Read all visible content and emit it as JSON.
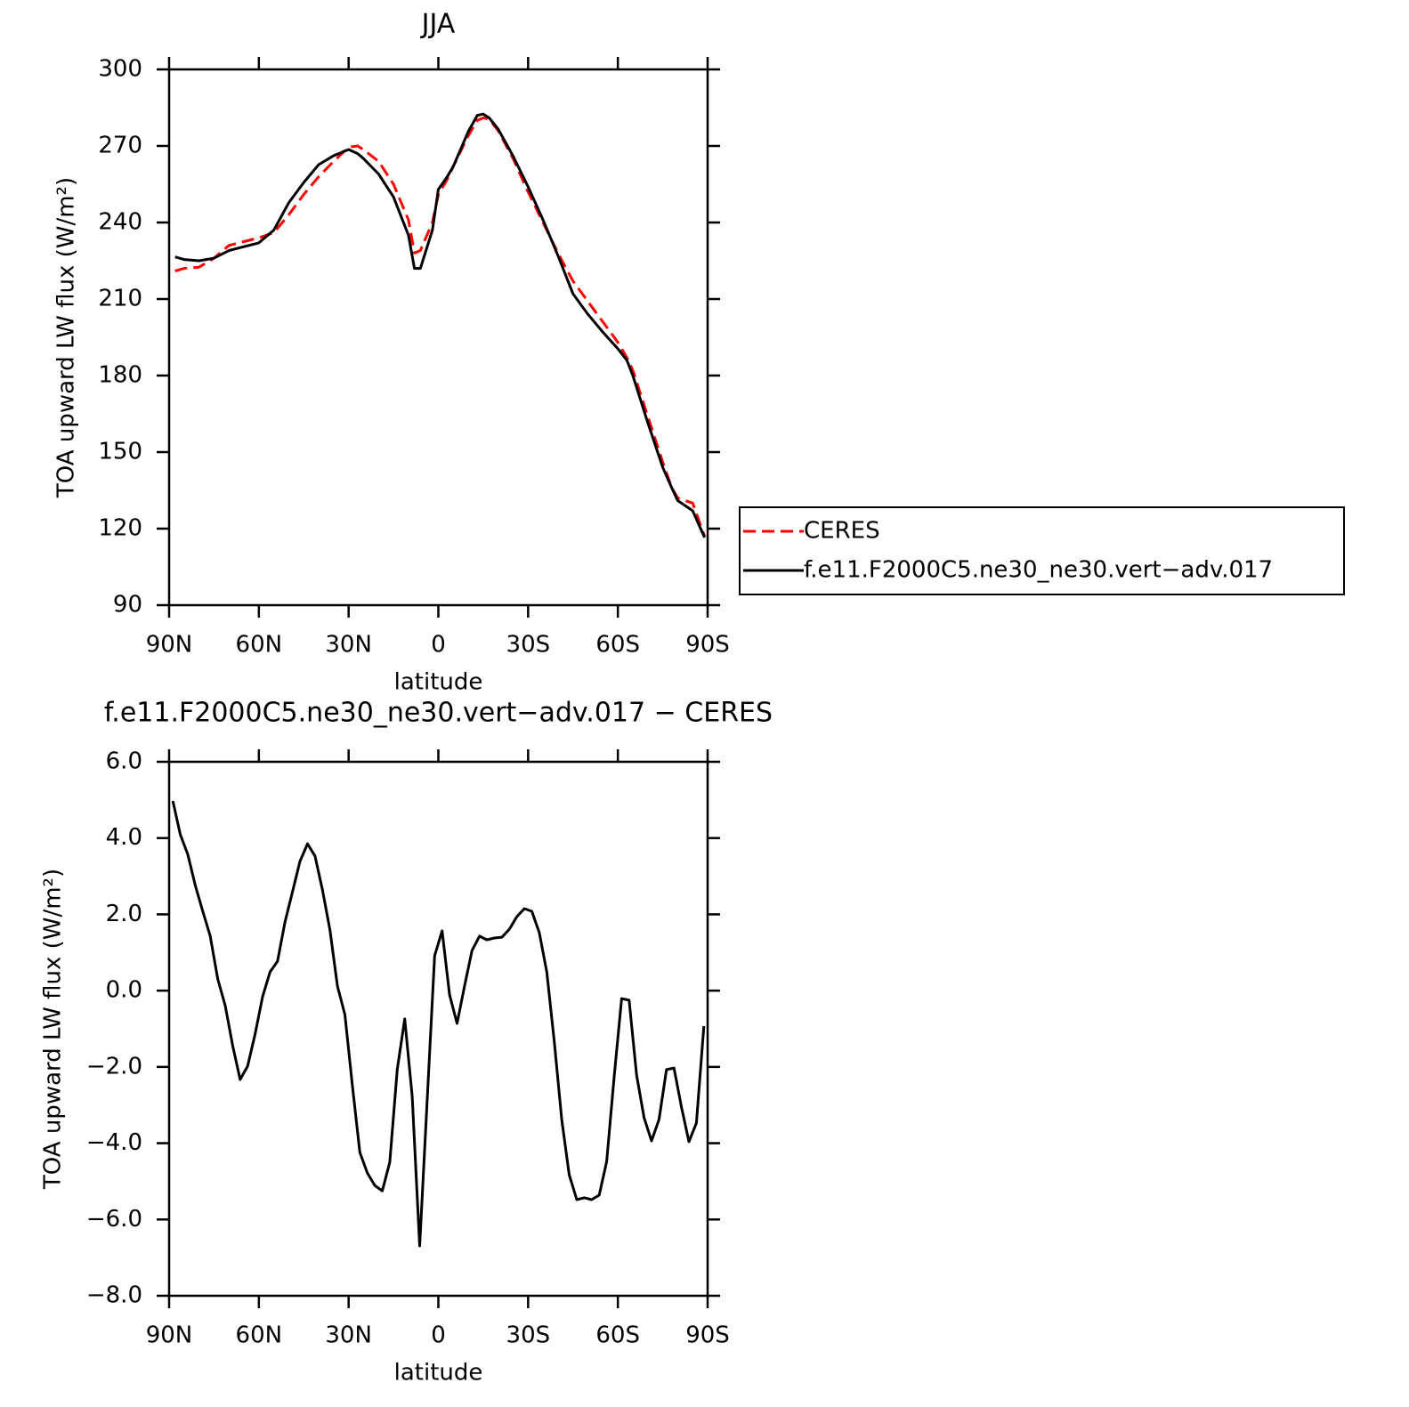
{
  "chart_data": [
    {
      "type": "line",
      "title": "JJA",
      "x_label": "latitude",
      "y_label": "TOA upward LW flux (W/m²)",
      "x": [
        88,
        85,
        80,
        75,
        70,
        65,
        60,
        55,
        50,
        45,
        40,
        35,
        30,
        27,
        25,
        20,
        15,
        10,
        8,
        6,
        2,
        0,
        -3,
        -5,
        -10,
        -13,
        -15,
        -17,
        -20,
        -25,
        -30,
        -35,
        -40,
        -45,
        -50,
        -55,
        -60,
        -63,
        -65,
        -70,
        -75,
        -78,
        -80,
        -85,
        -89
      ],
      "xlim": [
        90,
        -90
      ],
      "xticks": [
        {
          "value": 90,
          "label": "90N"
        },
        {
          "value": 60,
          "label": "60N"
        },
        {
          "value": 30,
          "label": "30N"
        },
        0,
        {
          "value": -30,
          "label": "30S"
        },
        {
          "value": -60,
          "label": "60S"
        },
        {
          "value": -90,
          "label": "90S"
        }
      ],
      "ylim": [
        90,
        300
      ],
      "yticks": [
        90,
        120,
        150,
        180,
        210,
        240,
        270,
        300
      ],
      "legend": "right",
      "series": [
        {
          "name": "CERES",
          "color": "#ff0000",
          "dash": "dashed",
          "values": [
            221,
            222,
            222.5,
            226,
            231,
            232.5,
            234,
            236,
            243,
            251,
            258,
            264,
            269.5,
            270,
            268.5,
            264,
            255,
            241,
            228,
            229,
            240,
            251,
            257,
            262,
            274,
            280,
            281,
            280.5,
            276,
            265,
            252,
            240,
            228,
            217,
            209,
            201,
            193,
            187,
            182,
            164,
            146,
            136,
            132,
            130,
            117
          ]
        },
        {
          "name": "f.e11.F2000C5.ne30_ne30.vert−adv.017",
          "color": "#000000",
          "values": [
            226.5,
            225.5,
            225,
            226,
            229,
            230.5,
            232,
            237,
            247.7,
            255.7,
            262.7,
            266.2,
            268.6,
            267,
            265,
            259,
            250,
            235,
            222,
            222,
            237,
            253,
            258,
            262,
            275.6,
            282,
            282.5,
            281,
            276.6,
            266,
            254,
            241,
            227,
            212,
            204,
            197,
            190.5,
            186,
            180,
            161.5,
            144,
            136,
            131,
            127,
            116.5
          ]
        }
      ]
    },
    {
      "type": "line",
      "title": "f.e11.F2000C5.ne30_ne30.vert−adv.017 − CERES",
      "x_label": "latitude",
      "y_label": "TOA upward LW flux (W/m²)",
      "x": [
        88.75,
        86.25,
        83.75,
        81.25,
        78.75,
        76.25,
        73.75,
        71.25,
        68.75,
        66.25,
        63.75,
        61.25,
        58.75,
        56.25,
        53.75,
        51.25,
        48.75,
        46.25,
        43.75,
        41.25,
        38.75,
        36.25,
        33.75,
        31.25,
        28.75,
        26.25,
        23.75,
        21.25,
        18.75,
        16.25,
        13.75,
        11.25,
        8.75,
        6.25,
        3.75,
        1.25,
        -1.25,
        -3.75,
        -6.25,
        -8.75,
        -11.25,
        -13.75,
        -16.25,
        -18.75,
        -21.25,
        -23.75,
        -26.25,
        -28.75,
        -31.25,
        -33.75,
        -36.25,
        -38.75,
        -41.25,
        -43.75,
        -46.25,
        -48.75,
        -51.25,
        -53.75,
        -56.25,
        -58.75,
        -61.25,
        -63.75,
        -66.25,
        -68.75,
        -71.25,
        -73.75,
        -76.25,
        -78.75,
        -81.25,
        -83.75,
        -86.25,
        -88.75
      ],
      "values": [
        4.97,
        4.09,
        3.57,
        2.76,
        2.08,
        1.43,
        0.31,
        -0.39,
        -1.44,
        -2.33,
        -1.98,
        -1.14,
        -0.16,
        0.49,
        0.77,
        1.8,
        2.59,
        3.39,
        3.85,
        3.53,
        2.64,
        1.59,
        0.12,
        -0.63,
        -2.49,
        -4.24,
        -4.78,
        -5.11,
        -5.25,
        -4.5,
        -2.07,
        -0.74,
        -2.77,
        -6.69,
        -2.89,
        0.91,
        1.57,
        -0.11,
        -0.86,
        0.12,
        1.05,
        1.43,
        1.33,
        1.38,
        1.4,
        1.61,
        1.94,
        2.15,
        2.08,
        1.52,
        0.49,
        -1.33,
        -3.38,
        -4.83,
        -5.48,
        -5.43,
        -5.48,
        -5.36,
        -4.48,
        -2.26,
        -0.21,
        -0.25,
        -2.21,
        -3.33,
        -3.94,
        -3.38,
        -2.07,
        -2.03,
        -3.05,
        -3.96,
        -3.47,
        -0.93
      ],
      "color": "#000000",
      "xlim": [
        90,
        -90
      ],
      "xticks": [
        {
          "value": 90,
          "label": "90N"
        },
        {
          "value": 60,
          "label": "60N"
        },
        {
          "value": 30,
          "label": "30N"
        },
        0,
        {
          "value": -30,
          "label": "30S"
        },
        {
          "value": -60,
          "label": "60S"
        },
        {
          "value": -90,
          "label": "90S"
        }
      ],
      "ylim": [
        -8,
        6
      ],
      "yticks": [
        {
          "value": -8,
          "label": "−8.0"
        },
        {
          "value": -6,
          "label": "−6.0"
        },
        {
          "value": -4,
          "label": "−4.0"
        },
        {
          "value": -2,
          "label": "−2.0"
        },
        {
          "value": 0,
          "label": "0.0"
        },
        {
          "value": 2,
          "label": "2.0"
        },
        {
          "value": 4,
          "label": "4.0"
        },
        {
          "value": 6,
          "label": "6.0"
        }
      ]
    }
  ]
}
